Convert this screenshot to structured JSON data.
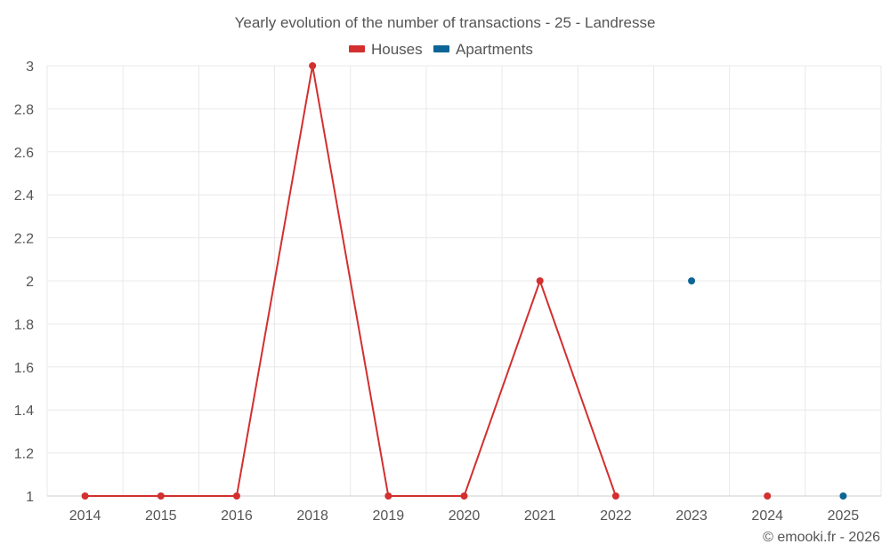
{
  "chart_data": {
    "type": "line",
    "title": "Yearly evolution of the number of transactions - 25 - Landresse",
    "categories": [
      "2014",
      "2015",
      "2016",
      "2018",
      "2019",
      "2020",
      "2021",
      "2022",
      "2023",
      "2024",
      "2025"
    ],
    "series": [
      {
        "name": "Houses",
        "color": "#d32f2f",
        "values": [
          1,
          1,
          1,
          3,
          1,
          1,
          2,
          1,
          null,
          1,
          null
        ]
      },
      {
        "name": "Apartments",
        "color": "#0d6496",
        "values": [
          null,
          null,
          null,
          null,
          null,
          null,
          null,
          null,
          2,
          null,
          1
        ]
      }
    ],
    "ylim": [
      1,
      3
    ],
    "yticks": [
      "1",
      "1.2",
      "1.4",
      "1.6",
      "1.8",
      "2",
      "2.2",
      "2.4",
      "2.6",
      "2.8",
      "3"
    ],
    "xlabel": "",
    "ylabel": "",
    "legend_position": "top-center",
    "grid": true
  },
  "credit": "© emooki.fr - 2026"
}
